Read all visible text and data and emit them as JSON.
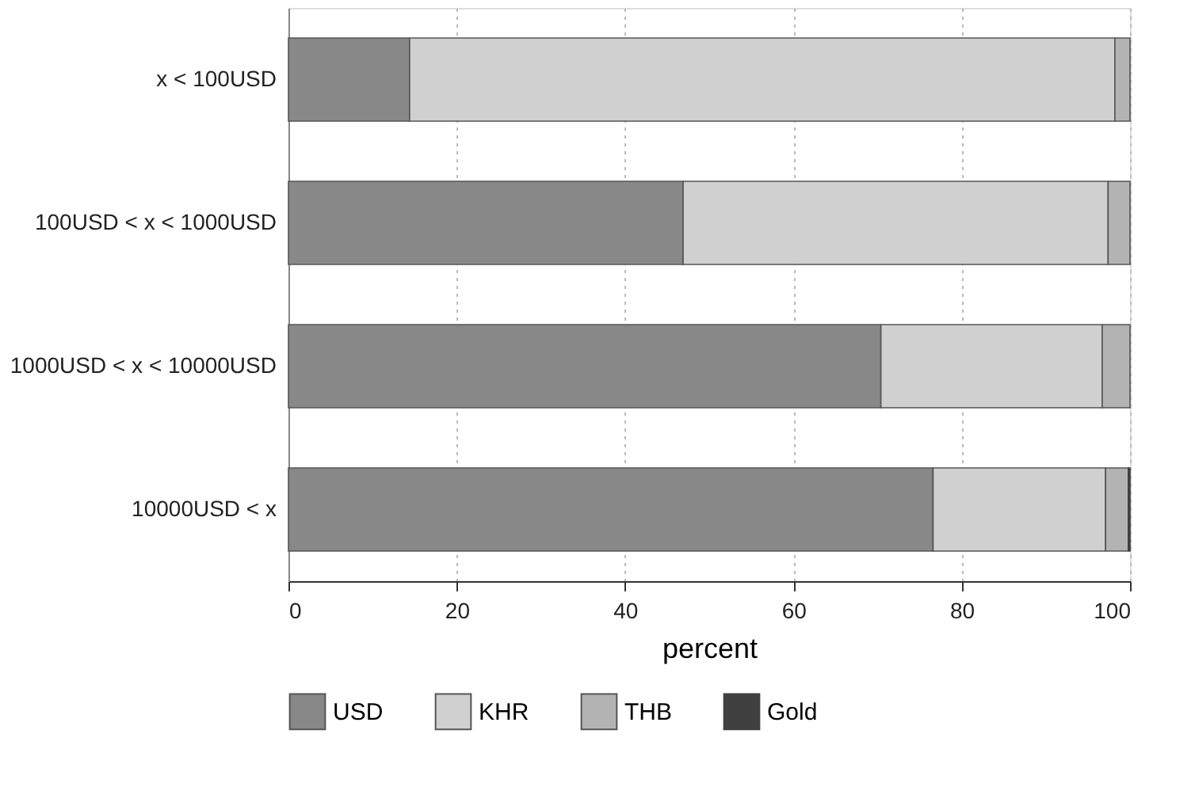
{
  "chart_data": {
    "type": "bar",
    "orientation": "horizontal",
    "stacked": true,
    "xlabel": "percent",
    "categories": [
      "x < 100USD",
      "100USD < x < 1000USD",
      "1000USD < x < 10000USD",
      "10000USD < x"
    ],
    "series": [
      {
        "name": "USD",
        "color": "#888888",
        "values": [
          14.4,
          46.9,
          70.4,
          76.6
        ]
      },
      {
        "name": "KHR",
        "color": "#d0d0d0",
        "values": [
          83.8,
          50.5,
          26.3,
          20.5
        ]
      },
      {
        "name": "THB",
        "color": "#b3b3b3",
        "values": [
          1.8,
          2.6,
          3.3,
          2.7
        ]
      },
      {
        "name": "Gold",
        "color": "#404040",
        "values": [
          0,
          0,
          0,
          0.2
        ]
      }
    ],
    "xlim": [
      0,
      100
    ],
    "xticks": [
      0,
      20,
      40,
      60,
      80,
      100
    ],
    "grid": "x",
    "legend": "bottom"
  }
}
